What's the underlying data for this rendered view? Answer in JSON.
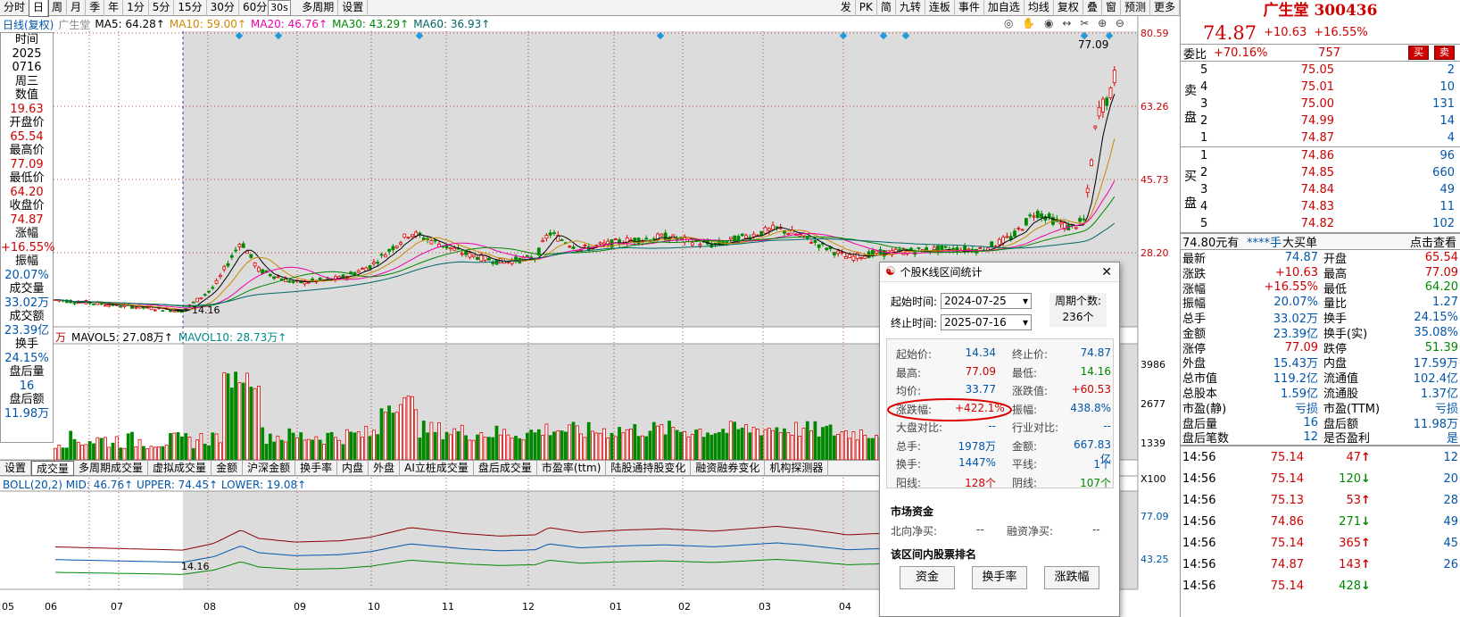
{
  "toolbar": {
    "items": [
      "分时",
      "日",
      "周",
      "月",
      "季",
      "年",
      "1分",
      "5分",
      "15分",
      "30分",
      "60分",
      "多周期",
      "设置"
    ],
    "active": "日",
    "right_items": [
      "发",
      "PK",
      "简",
      "九转",
      "连板",
      "事件",
      "加自选",
      "均线",
      "复权",
      "叠",
      "窗",
      "预测",
      "更多"
    ]
  },
  "ma_line": {
    "prefix": "日线(复权)",
    "stock": "广生堂",
    "ma5": "MA5: 64.28↑",
    "ma10": "MA10: 59.00↑",
    "ma20": "MA20: 46.76↑",
    "ma30": "MA30: 43.29↑",
    "ma60": "MA60: 36.93↑",
    "interval": "30s"
  },
  "info_panel": [
    {
      "l": "时间",
      "v": "2025",
      "c": "lbl"
    },
    {
      "l": "",
      "v": "0716",
      "c": "lbl"
    },
    {
      "l": "",
      "v": "周三",
      "c": "lbl"
    },
    {
      "l": "数值",
      "v": "19.63",
      "c": "val"
    },
    {
      "l": "开盘价",
      "v": "65.54",
      "c": "val"
    },
    {
      "l": "最高价",
      "v": "77.09",
      "c": "val"
    },
    {
      "l": "最低价",
      "v": "64.20",
      "c": "val"
    },
    {
      "l": "收盘价",
      "v": "74.87",
      "c": "val"
    },
    {
      "l": "涨幅",
      "v": "+16.55%",
      "c": "val"
    },
    {
      "l": "振幅",
      "v": "20.07%",
      "c": "blu"
    },
    {
      "l": "成交量",
      "v": "33.02万",
      "c": "blu"
    },
    {
      "l": "成交额",
      "v": "23.39亿",
      "c": "blu"
    },
    {
      "l": "换手",
      "v": "24.15%",
      "c": "blu"
    },
    {
      "l": "盘后量",
      "v": "16",
      "c": "blu"
    },
    {
      "l": "盘后额",
      "v": "11.98万",
      "c": "blu"
    }
  ],
  "price_axis": [
    "80.59",
    "63.26",
    "45.73",
    "28.20"
  ],
  "volume_axis": [
    "3986",
    "2677",
    "1339",
    "X100"
  ],
  "boll_axis": [
    "77.09",
    "43.25"
  ],
  "annotations": {
    "high": "77.09",
    "low": "14.16",
    "boll_low": "14.16"
  },
  "vol_line": {
    "unit": "万",
    "mavol5": "MAVOL5: 27.08万↑",
    "mavol10": "MAVOL10: 28.73万↑"
  },
  "boll_line": {
    "text": "BOLL(20,2) MID: 46.76↑ UPPER: 74.45↑ LOWER: 19.08↑"
  },
  "tabs": [
    "设置",
    "成交量",
    "多周期成交量",
    "虚拟成交量",
    "金额",
    "沪深金额",
    "换手率",
    "内盘",
    "外盘",
    "AI立桩成交量",
    "盘后成交量",
    "市盈率(ttm)",
    "陆股通持股变化",
    "融资融券变化",
    "机构探测器"
  ],
  "active_tab": "成交量",
  "months": [
    "05",
    "06",
    "07",
    "08",
    "09",
    "10",
    "11",
    "12",
    "01",
    "02",
    "03",
    "04"
  ],
  "chart_data": {
    "type": "candlestick",
    "series": [
      {
        "name": "MA5"
      },
      {
        "name": "MA10"
      },
      {
        "name": "MA20"
      },
      {
        "name": "MA30"
      },
      {
        "name": "MA60"
      }
    ],
    "ylim": [
      14.16,
      80.59
    ],
    "last": {
      "open": 65.54,
      "high": 77.09,
      "low": 64.2,
      "close": 74.87
    }
  },
  "popup": {
    "title": "个股K线区间统计",
    "start_label": "起始时间:",
    "start": "2024-07-25",
    "end_label": "终止时间:",
    "end": "2025-07-16",
    "period_label": "周期个数:",
    "period": "236个",
    "stats": [
      [
        "起始价:",
        "14.34",
        "终止价:",
        "74.87"
      ],
      [
        "最高:",
        "77.09",
        "最低:",
        "14.16"
      ],
      [
        "均价:",
        "33.77",
        "涨跌值:",
        "+60.53"
      ],
      [
        "涨跌幅:",
        "+422.1%",
        "振幅:",
        "438.8%"
      ],
      [
        "大盘对比:",
        "--",
        "行业对比:",
        "--"
      ],
      [
        "总手:",
        "1978万",
        "金额:",
        "667.83亿"
      ],
      [
        "换手:",
        "1447%",
        "平线:",
        "1个"
      ],
      [
        "阳线:",
        "128个",
        "阴线:",
        "107个"
      ]
    ],
    "funds_title": "市场资金",
    "north": "北向净买:",
    "north_v": "--",
    "margin": "融资净买:",
    "margin_v": "--",
    "rank_title": "该区间内股票排名",
    "btns": [
      "资金",
      "换手率",
      "涨跌幅"
    ]
  },
  "quote": {
    "name": "广生堂 300436",
    "price": "74.87",
    "chg": "+10.63",
    "pct": "+16.55%",
    "weibi_l": "委比",
    "weibi": "+70.16%",
    "weicha": "757",
    "buy": "买",
    "sell": "卖",
    "asks": [
      [
        "5",
        "75.05",
        "2"
      ],
      [
        "4",
        "75.01",
        "10"
      ],
      [
        "3",
        "75.00",
        "131"
      ],
      [
        "2",
        "74.99",
        "14"
      ],
      [
        "1",
        "74.87",
        "4"
      ]
    ],
    "bids": [
      [
        "1",
        "74.86",
        "96"
      ],
      [
        "2",
        "74.85",
        "660"
      ],
      [
        "3",
        "74.84",
        "49"
      ],
      [
        "4",
        "74.83",
        "11"
      ],
      [
        "5",
        "74.82",
        "102"
      ]
    ],
    "ask_label": "卖盘",
    "bid_label": "买盘",
    "big_order": {
      "price": "74.80元有",
      "mask": "****手",
      "label": "大买单",
      "link": "点击查看"
    },
    "stats": [
      [
        "最新",
        "74.87",
        "开盘",
        "65.54"
      ],
      [
        "涨跌",
        "+10.63",
        "最高",
        "77.09"
      ],
      [
        "涨幅",
        "+16.55%",
        "最低",
        "64.20"
      ],
      [
        "振幅",
        "20.07%",
        "量比",
        "1.27"
      ],
      [
        "总手",
        "33.02万",
        "换手",
        "24.15%"
      ],
      [
        "金额",
        "23.39亿",
        "换手(实)",
        "35.08%"
      ],
      [
        "涨停",
        "77.09",
        "跌停",
        "51.39"
      ],
      [
        "外盘",
        "15.43万",
        "内盘",
        "17.59万"
      ],
      [
        "总市值",
        "119.2亿",
        "流通值",
        "102.4亿"
      ],
      [
        "总股本",
        "1.59亿",
        "流通股",
        "1.37亿"
      ],
      [
        "市盈(静)",
        "亏损",
        "市盈(TTM)",
        "亏损"
      ],
      [
        "盘后量",
        "16",
        "盘后额",
        "11.98万"
      ],
      [
        "盘后笔数",
        "12",
        "是否盈利",
        "是"
      ]
    ],
    "ticks": [
      [
        "14:56",
        "75.14",
        "47",
        "↑",
        "12"
      ],
      [
        "14:56",
        "75.14",
        "120",
        "↓",
        "20"
      ],
      [
        "14:56",
        "75.13",
        "53",
        "↑",
        "28"
      ],
      [
        "14:56",
        "74.86",
        "271",
        "↓",
        "49"
      ],
      [
        "14:56",
        "75.14",
        "365",
        "↑",
        "45"
      ],
      [
        "14:56",
        "74.87",
        "143",
        "↑",
        "26"
      ],
      [
        "14:56",
        "75.14",
        "428",
        "↓",
        ""
      ]
    ]
  }
}
